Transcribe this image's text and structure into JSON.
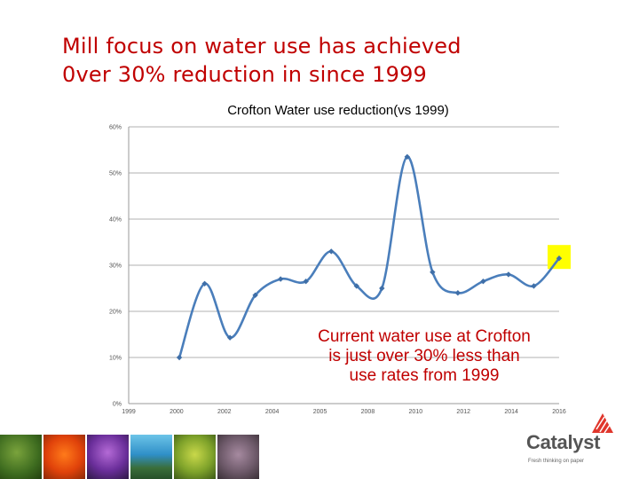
{
  "slide": {
    "headline_line1": "Mill focus on water use has achieved",
    "headline_line2": "0ver 30% reduction in since 1999",
    "annotation_line1": "Current water use at Crofton",
    "annotation_line2": "is just over 30% less than",
    "annotation_line3": "use rates from 1999",
    "accent_color": "#c00000"
  },
  "chart_data": {
    "type": "line",
    "title": "Crofton Water use reduction(vs 1999)",
    "xlabel": "",
    "ylabel": "",
    "xlim": [
      1999,
      2016
    ],
    "ylim": [
      0,
      60
    ],
    "xticks": [
      "1999",
      "2000",
      "2002",
      "2004",
      "2005",
      "2008",
      "2010",
      "2012",
      "2014",
      "2016"
    ],
    "yticks": [
      "0%",
      "10%",
      "20%",
      "30%",
      "40%",
      "50%",
      "60%"
    ],
    "grid": "horizontal",
    "smooth": true,
    "series": [
      {
        "x": [
          2001,
          2002,
          2003,
          2004,
          2005,
          2006,
          2007,
          2008,
          2009,
          2010,
          2011,
          2012,
          2013,
          2014,
          2015,
          2016
        ],
        "values": [
          10,
          26,
          14.3,
          23.5,
          27,
          26.5,
          33,
          25.5,
          25,
          53.5,
          28.5,
          24,
          26.5,
          28,
          25.5,
          31.5
        ],
        "color": "#4a7ebb"
      }
    ],
    "highlight": {
      "x": 2016,
      "value": 31.5,
      "color": "#ffff00"
    }
  },
  "branding": {
    "logo_name": "Catalyst",
    "logo_tagline": "Fresh thinking on paper",
    "logo_color": "#e0362c"
  },
  "photos": [
    "green-foliage-photo",
    "orange-flowers-photo",
    "purple-flowers-photo",
    "waterfall-photo",
    "yellow-plant-photo",
    "dried-plant-photo"
  ]
}
